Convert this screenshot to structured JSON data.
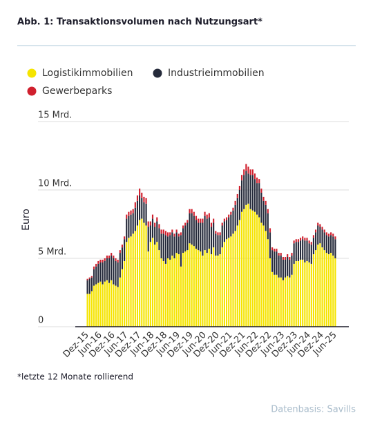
{
  "chart_data": {
    "type": "bar",
    "stacked": true,
    "title": "Abb. 1: Transaktionsvolumen nach Nutzungsart*",
    "y_label": "Euro",
    "footnote": "*letzte 12 Monate rollierend",
    "source": "Datenbasis: Savills",
    "ylim": [
      0,
      15
    ],
    "yticks": [
      0,
      {
        "value": 5,
        "label": "5 Mrd."
      },
      {
        "value": 10,
        "label": "10 Mrd."
      },
      {
        "value": 15,
        "label": "15 Mrd."
      }
    ],
    "grid": true,
    "legend": "top",
    "categories": [
      "Dez-15",
      null,
      null,
      null,
      null,
      null,
      "Jun-16",
      null,
      null,
      null,
      null,
      null,
      "Dez-16",
      null,
      null,
      null,
      null,
      null,
      "Jun-17",
      null,
      null,
      null,
      null,
      null,
      "Dez-17",
      null,
      null,
      null,
      null,
      null,
      "Jun-18",
      null,
      null,
      null,
      null,
      null,
      "Dez-18",
      null,
      null,
      null,
      null,
      null,
      "Jun-19",
      null,
      null,
      null,
      null,
      null,
      "Dez-19",
      null,
      null,
      null,
      null,
      null,
      "Jun-20",
      null,
      null,
      null,
      null,
      null,
      "Dez-20",
      null,
      null,
      null,
      null,
      null,
      "Jun-21",
      null,
      null,
      null,
      null,
      null,
      "Dez-21",
      null,
      null,
      null,
      null,
      null,
      "Jun-22",
      null,
      null,
      null,
      null,
      null,
      "Dez-22",
      null,
      null,
      null,
      null,
      null,
      "Jun-23",
      null,
      null,
      null,
      null,
      null,
      "Dez-23",
      null,
      null,
      null,
      null,
      null,
      "Jun-24",
      null,
      null,
      null,
      null,
      null,
      "Dez-24",
      null,
      null,
      null,
      null,
      null,
      "Jun-25"
    ],
    "series": [
      {
        "name": "Logistikimmobilien",
        "color": "#f5e400",
        "values": [
          2.4,
          2.4,
          2.6,
          3.0,
          3.1,
          3.2,
          3.3,
          3.1,
          3.3,
          3.4,
          3.2,
          3.4,
          3.1,
          3.0,
          2.9,
          3.6,
          4.2,
          4.8,
          6.2,
          6.5,
          6.6,
          6.8,
          7.0,
          7.4,
          7.8,
          7.9,
          7.6,
          7.4,
          5.5,
          6.2,
          6.5,
          6.0,
          6.2,
          5.6,
          5.0,
          4.8,
          4.6,
          5.0,
          4.9,
          5.2,
          5.0,
          5.4,
          5.3,
          4.4,
          5.4,
          5.5,
          5.6,
          6.1,
          6.0,
          5.9,
          5.7,
          5.6,
          5.5,
          5.2,
          5.6,
          5.4,
          5.7,
          5.3,
          5.8,
          5.2,
          5.2,
          5.3,
          5.8,
          6.2,
          6.4,
          6.5,
          6.6,
          6.8,
          7.0,
          7.4,
          7.8,
          8.4,
          8.6,
          8.9,
          9.0,
          8.6,
          8.5,
          8.4,
          8.2,
          8.0,
          7.6,
          7.4,
          7.0,
          6.4,
          5.0,
          4.0,
          3.8,
          3.8,
          3.6,
          3.6,
          3.4,
          3.6,
          3.7,
          3.6,
          3.8,
          4.6,
          4.8,
          4.8,
          4.9,
          4.9,
          4.7,
          4.8,
          4.7,
          4.6,
          5.3,
          5.6,
          6.0,
          6.1,
          5.8,
          5.6,
          5.4,
          5.3,
          5.4,
          5.2,
          5.0
        ]
      },
      {
        "name": "Industrieimmobilien",
        "color": "#252a3a",
        "values": [
          1.0,
          1.1,
          1.0,
          1.2,
          1.3,
          1.4,
          1.4,
          1.6,
          1.5,
          1.6,
          1.8,
          1.8,
          1.9,
          1.8,
          1.8,
          1.8,
          1.6,
          1.6,
          1.7,
          1.6,
          1.6,
          1.5,
          1.7,
          1.8,
          1.8,
          1.5,
          1.5,
          1.6,
          1.8,
          1.2,
          1.4,
          1.3,
          1.5,
          1.6,
          1.8,
          2.0,
          2.1,
          1.6,
          1.8,
          1.7,
          1.6,
          1.5,
          1.3,
          2.3,
          1.8,
          1.9,
          2.0,
          2.2,
          2.3,
          2.2,
          2.1,
          2.0,
          2.1,
          2.4,
          2.5,
          2.5,
          2.3,
          2.0,
          1.8,
          1.6,
          1.5,
          1.4,
          1.6,
          1.5,
          1.4,
          1.5,
          1.6,
          1.7,
          1.9,
          2.0,
          2.2,
          2.3,
          2.5,
          2.5,
          2.2,
          2.5,
          2.6,
          2.4,
          2.3,
          2.5,
          2.2,
          1.8,
          1.9,
          1.9,
          1.9,
          1.6,
          1.7,
          1.7,
          1.6,
          1.6,
          1.5,
          1.3,
          1.4,
          1.3,
          1.4,
          1.5,
          1.4,
          1.4,
          1.4,
          1.5,
          1.6,
          1.5,
          1.4,
          1.4,
          1.2,
          1.3,
          1.4,
          1.2,
          1.3,
          1.3,
          1.3,
          1.3,
          1.3,
          1.4,
          1.4
        ]
      },
      {
        "name": "Gewerbeparks",
        "color": "#d0202e",
        "values": [
          0.1,
          0.1,
          0.1,
          0.2,
          0.2,
          0.2,
          0.2,
          0.2,
          0.2,
          0.2,
          0.2,
          0.2,
          0.2,
          0.2,
          0.2,
          0.2,
          0.2,
          0.2,
          0.3,
          0.3,
          0.3,
          0.3,
          0.4,
          0.4,
          0.5,
          0.4,
          0.4,
          0.4,
          0.4,
          0.3,
          0.3,
          0.3,
          0.3,
          0.3,
          0.3,
          0.3,
          0.3,
          0.3,
          0.2,
          0.2,
          0.2,
          0.2,
          0.2,
          0.2,
          0.2,
          0.2,
          0.2,
          0.3,
          0.3,
          0.3,
          0.3,
          0.3,
          0.3,
          0.3,
          0.3,
          0.3,
          0.3,
          0.3,
          0.3,
          0.2,
          0.2,
          0.2,
          0.2,
          0.2,
          0.2,
          0.2,
          0.2,
          0.2,
          0.3,
          0.3,
          0.3,
          0.4,
          0.4,
          0.5,
          0.5,
          0.4,
          0.4,
          0.4,
          0.4,
          0.3,
          0.3,
          0.3,
          0.3,
          0.3,
          0.3,
          0.2,
          0.2,
          0.2,
          0.2,
          0.2,
          0.2,
          0.2,
          0.2,
          0.2,
          0.2,
          0.2,
          0.2,
          0.2,
          0.2,
          0.2,
          0.2,
          0.2,
          0.2,
          0.2,
          0.2,
          0.2,
          0.2,
          0.2,
          0.2,
          0.2,
          0.2,
          0.2,
          0.2,
          0.2,
          0.2
        ]
      }
    ]
  }
}
